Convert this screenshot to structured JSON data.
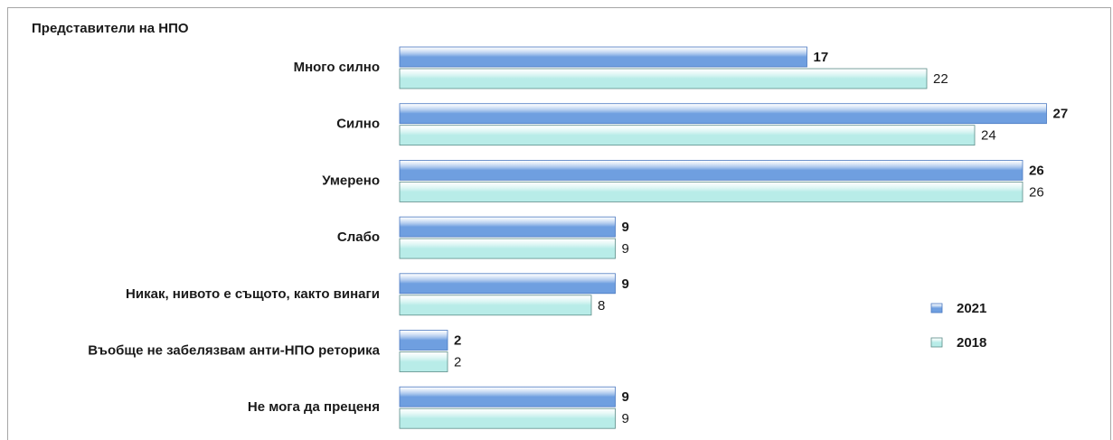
{
  "chart_data": {
    "type": "barh",
    "title": "Представители на НПО",
    "categories": [
      "Много силно",
      "Силно",
      "Умерено",
      "Слабо",
      "Никак, нивото е същото, както винаги",
      "Въобще не забелязвам анти-НПО реторика",
      "Не мога да преценя"
    ],
    "series": [
      {
        "name": "2021",
        "color": "#6f9fe0",
        "values": [
          17,
          27,
          26,
          9,
          9,
          2,
          9
        ]
      },
      {
        "name": "2018",
        "color": "#b8ece8",
        "values": [
          22,
          24,
          26,
          9,
          8,
          2,
          9
        ]
      }
    ],
    "xlim": [
      0,
      28
    ],
    "legend": "right"
  }
}
